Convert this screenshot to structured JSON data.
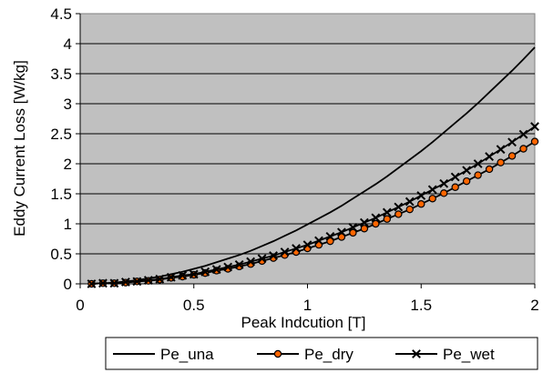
{
  "chart_data": {
    "type": "line",
    "title": "",
    "xlabel": "Peak Indcution [T]",
    "ylabel": "Eddy Current Loss [W/kg]",
    "xlim": [
      0,
      2
    ],
    "ylim": [
      0,
      4.5
    ],
    "x_ticks": [
      "0",
      "0.5",
      "1",
      "1.5",
      "2"
    ],
    "y_ticks": [
      "0",
      "0.5",
      "1",
      "1.5",
      "2",
      "2.5",
      "3",
      "3.5",
      "4",
      "4.5"
    ],
    "grid": "horizontal",
    "plot_background": "#c0c0c0",
    "legend_position": "bottom",
    "x": [
      0.05,
      0.1,
      0.15,
      0.2,
      0.25,
      0.3,
      0.35,
      0.4,
      0.45,
      0.5,
      0.55,
      0.6,
      0.65,
      0.7,
      0.75,
      0.8,
      0.85,
      0.9,
      0.95,
      1.0,
      1.05,
      1.1,
      1.15,
      1.2,
      1.25,
      1.3,
      1.35,
      1.4,
      1.45,
      1.5,
      1.55,
      1.6,
      1.65,
      1.7,
      1.75,
      1.8,
      1.85,
      1.9,
      1.95,
      2.0
    ],
    "series": [
      {
        "name": "Pe_una",
        "marker": "none",
        "color": "#000000",
        "values": [
          0.002,
          0.01,
          0.02,
          0.04,
          0.06,
          0.09,
          0.12,
          0.16,
          0.2,
          0.25,
          0.3,
          0.36,
          0.42,
          0.48,
          0.55,
          0.63,
          0.71,
          0.8,
          0.89,
          0.99,
          1.09,
          1.19,
          1.3,
          1.42,
          1.54,
          1.66,
          1.79,
          1.93,
          2.07,
          2.21,
          2.36,
          2.52,
          2.68,
          2.84,
          3.01,
          3.19,
          3.37,
          3.55,
          3.74,
          3.94
        ]
      },
      {
        "name": "Pe_dry",
        "marker": "circle",
        "color": "#000000",
        "marker_fill": "#ff6600",
        "values": [
          0.0,
          0.01,
          0.01,
          0.02,
          0.04,
          0.05,
          0.07,
          0.1,
          0.12,
          0.15,
          0.18,
          0.22,
          0.25,
          0.29,
          0.33,
          0.38,
          0.43,
          0.48,
          0.53,
          0.59,
          0.65,
          0.71,
          0.78,
          0.85,
          0.92,
          1.0,
          1.08,
          1.16,
          1.24,
          1.33,
          1.42,
          1.51,
          1.61,
          1.71,
          1.81,
          1.91,
          2.02,
          2.13,
          2.25,
          2.37
        ]
      },
      {
        "name": "Pe_wet",
        "marker": "x",
        "color": "#000000",
        "values": [
          0.0,
          0.01,
          0.01,
          0.03,
          0.04,
          0.06,
          0.08,
          0.11,
          0.14,
          0.16,
          0.2,
          0.24,
          0.28,
          0.32,
          0.37,
          0.42,
          0.47,
          0.53,
          0.59,
          0.65,
          0.72,
          0.79,
          0.86,
          0.94,
          1.02,
          1.1,
          1.19,
          1.28,
          1.37,
          1.47,
          1.57,
          1.67,
          1.78,
          1.89,
          2.0,
          2.12,
          2.24,
          2.36,
          2.49,
          2.62
        ]
      }
    ]
  }
}
